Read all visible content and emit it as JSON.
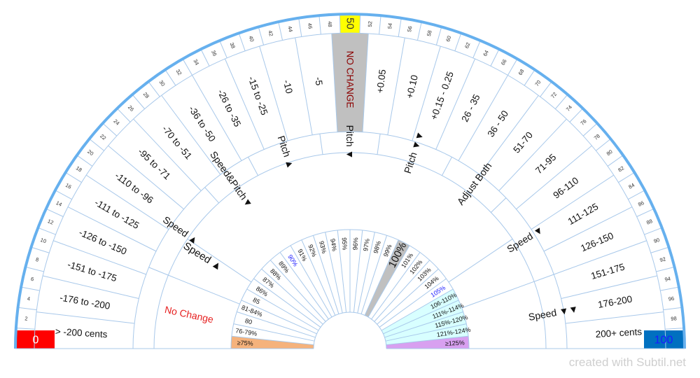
{
  "credit": "created with Subtil.net",
  "colors": {
    "line": "#a8c8ea",
    "outer_ring": "#66b0ee",
    "highlight_yellow": "#ffff00",
    "no_change_grey": "#c0c0c0",
    "no_change_text": "#8b0000",
    "no_change_red": "#e62020",
    "zero_red": "#ff0000",
    "hundred_blue": "#0070c0",
    "ninety_blue": "#1a1aff",
    "low_orange": "#f5b27c",
    "high_purple": "#d8a0f0",
    "cyan_fill": "#d8ffff"
  },
  "scale": {
    "min_label": "0",
    "max_label": "100",
    "ticks": [
      "2",
      "4",
      "6",
      "8",
      "10",
      "12",
      "14",
      "16",
      "18",
      "20",
      "22",
      "24",
      "26",
      "28",
      "30",
      "32",
      "34",
      "36",
      "38",
      "40",
      "42",
      "44",
      "46",
      "48",
      "50",
      "52",
      "54",
      "56",
      "58",
      "60",
      "62",
      "64",
      "66",
      "68",
      "70",
      "72",
      "74",
      "76",
      "78",
      "80",
      "82",
      "84",
      "86",
      "88",
      "90",
      "92",
      "94",
      "96",
      "98"
    ],
    "highlight": "50"
  },
  "cents_ring": {
    "labels": [
      "> -200 cents",
      "-176 to -200",
      "-151 to -175",
      "-126 to -150",
      "-111 to -125",
      "-110 to -96",
      "-95 to -71",
      "-70 to -51",
      "-36 to -50",
      "-26 to -35",
      "-15 to -25",
      "-10",
      "-5",
      "NO CHANGE",
      "+0.05",
      "+0.10",
      "+0.15 - 0.25",
      "26 - 35",
      "36 - 50",
      "51-70",
      "71-95",
      "96-110",
      "111-125",
      "126-150",
      "151-175",
      "176-200",
      "200+ cents"
    ]
  },
  "mode_ring": {
    "labels": [
      "No Change",
      "Speed ▲",
      "Speed&Pitch▼",
      "Pitch ▲",
      "Pitch ▼",
      "Pitch ▼▼",
      "Adjust Both",
      "Speed ▼",
      "Speed ▼▼"
    ]
  },
  "percent_ring": {
    "labels": [
      "≥75%",
      "76-79%",
      "80",
      "81-84%",
      "85",
      "86%",
      "87%",
      "88%",
      "89%",
      "90%",
      "91%",
      "92%",
      "93%",
      "94%",
      "95%",
      "96%",
      "97%",
      "98%",
      "99%",
      "100%",
      "101%",
      "102%",
      "103%",
      "104%",
      "105%",
      "106-110%",
      "111%-114%",
      "115%-120%",
      "121%-124%",
      "≥125%"
    ]
  }
}
